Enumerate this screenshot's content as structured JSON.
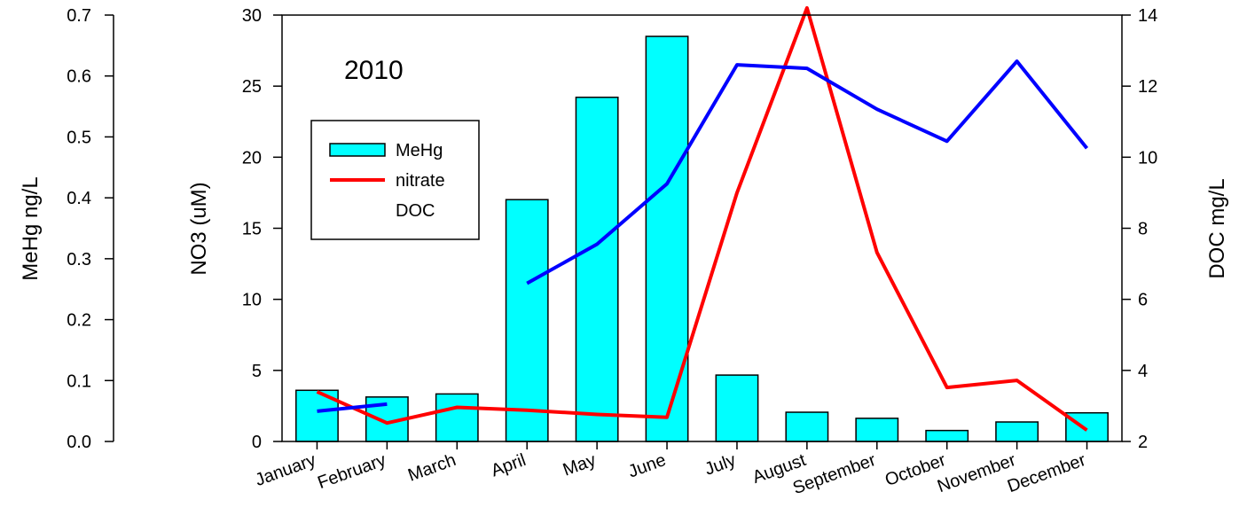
{
  "chart_data": {
    "type": "bar",
    "annotation": "2010",
    "categories": [
      "January",
      "February",
      "March",
      "April",
      "May",
      "June",
      "July",
      "August",
      "September",
      "October",
      "November",
      "December"
    ],
    "axes": {
      "left_meHg": {
        "label": "MeHg ng/L",
        "range": [
          0,
          0.7
        ],
        "ticks": [
          "0.0",
          "0.1",
          "0.2",
          "0.3",
          "0.4",
          "0.5",
          "0.6",
          "0.7"
        ]
      },
      "left_no3": {
        "label": "NO3 (uM)",
        "range": [
          0,
          30
        ],
        "ticks": [
          "0",
          "5",
          "10",
          "15",
          "20",
          "25",
          "30"
        ]
      },
      "right_doc": {
        "label": "DOC mg/L",
        "range": [
          2,
          14
        ],
        "ticks": [
          "2",
          "4",
          "6",
          "8",
          "10",
          "12",
          "14"
        ]
      }
    },
    "series": [
      {
        "name": "MeHg",
        "kind": "bar",
        "axis": "left_meHg",
        "color": "#00FFFF",
        "values": [
          0.084,
          0.073,
          0.078,
          0.397,
          0.565,
          0.665,
          0.109,
          0.048,
          0.038,
          0.018,
          0.032,
          0.047
        ]
      },
      {
        "name": "nitrate",
        "kind": "line",
        "axis": "left_no3",
        "color": "#FF0000",
        "values": [
          3.5,
          1.3,
          2.4,
          2.2,
          1.9,
          1.7,
          17.5,
          30.5,
          13.3,
          3.8,
          4.3,
          0.8
        ]
      },
      {
        "name": "DOC",
        "kind": "line",
        "axis": "right_doc",
        "color": "#0000FF",
        "values": [
          2.85,
          3.05,
          null,
          6.45,
          7.55,
          9.25,
          12.6,
          12.5,
          11.35,
          10.45,
          12.7,
          10.25
        ]
      }
    ],
    "legend": {
      "position": "top-left"
    }
  }
}
